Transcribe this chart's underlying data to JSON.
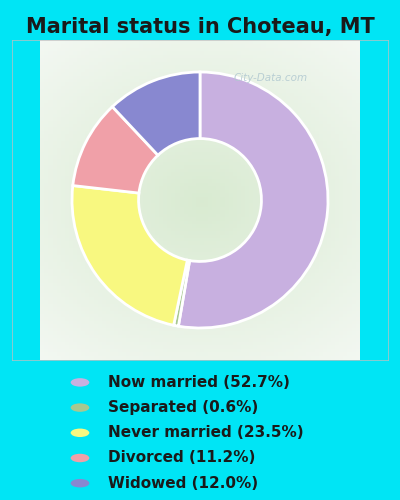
{
  "title": "Marital status in Choteau, MT",
  "slices": [
    {
      "label": "Now married (52.7%)",
      "value": 52.7,
      "color": "#c8b0e0"
    },
    {
      "label": "Separated (0.6%)",
      "value": 0.6,
      "color": "#a8c890"
    },
    {
      "label": "Never married (23.5%)",
      "value": 23.5,
      "color": "#f8f880"
    },
    {
      "label": "Divorced (11.2%)",
      "value": 11.2,
      "color": "#f0a0a8"
    },
    {
      "label": "Widowed (12.0%)",
      "value": 12.0,
      "color": "#8888d0"
    }
  ],
  "legend_dot_colors": [
    "#c8b0e0",
    "#a8c890",
    "#f8f880",
    "#f0a0a8",
    "#8888d0"
  ],
  "bg_cyan": "#00e5f5",
  "bg_chart_color": "#d8ead0",
  "title_color": "#1a1a1a",
  "title_fontsize": 15,
  "legend_fontsize": 11,
  "watermark": "City-Data.com",
  "donut_width": 0.52,
  "startangle": 90
}
